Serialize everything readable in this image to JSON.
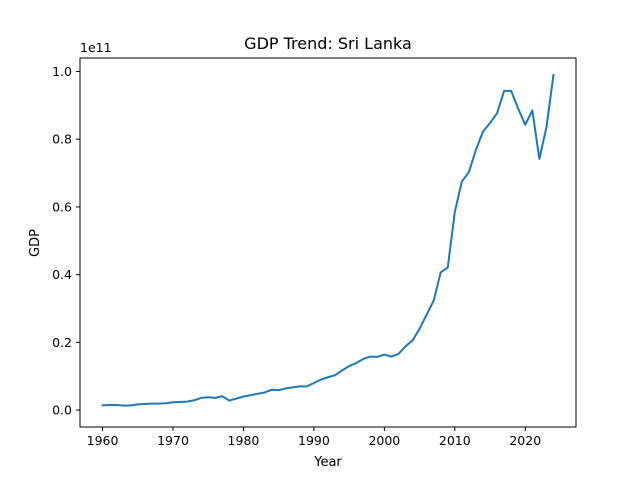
{
  "chart_data": {
    "type": "line",
    "title": "GDP Trend: Sri Lanka",
    "xlabel": "Year",
    "ylabel": "GDP",
    "y_offset_label": "1e11",
    "xlim": [
      1956.8,
      2027.2
    ],
    "ylim": [
      -0.05,
      1.04
    ],
    "y_scale_note": "values in units of 1e11",
    "x_ticks": [
      1960,
      1970,
      1980,
      1990,
      2000,
      2010,
      2020
    ],
    "x_tick_labels": [
      "1960",
      "1970",
      "1980",
      "1990",
      "2000",
      "2010",
      "2020"
    ],
    "y_ticks": [
      0.0,
      0.2,
      0.4,
      0.6,
      0.8,
      1.0
    ],
    "y_tick_labels": [
      "0.0",
      "0.2",
      "0.4",
      "0.6",
      "0.8",
      "1.0"
    ],
    "grid": false,
    "series": [
      {
        "color": "#1f77b4",
        "x": [
          1960,
          1961,
          1962,
          1963,
          1964,
          1965,
          1966,
          1967,
          1968,
          1969,
          1970,
          1971,
          1972,
          1973,
          1974,
          1975,
          1976,
          1977,
          1978,
          1979,
          1980,
          1981,
          1982,
          1983,
          1984,
          1985,
          1986,
          1987,
          1988,
          1989,
          1990,
          1991,
          1992,
          1993,
          1994,
          1995,
          1996,
          1997,
          1998,
          1999,
          2000,
          2001,
          2002,
          2003,
          2004,
          2005,
          2006,
          2007,
          2008,
          2009,
          2010,
          2011,
          2012,
          2013,
          2014,
          2015,
          2016,
          2017,
          2018,
          2019,
          2020,
          2021,
          2022,
          2023,
          2024
        ],
        "values": [
          0.014,
          0.015,
          0.015,
          0.013,
          0.014,
          0.017,
          0.018,
          0.019,
          0.019,
          0.02,
          0.023,
          0.024,
          0.025,
          0.029,
          0.036,
          0.038,
          0.036,
          0.041,
          0.028,
          0.034,
          0.04,
          0.044,
          0.048,
          0.052,
          0.06,
          0.059,
          0.064,
          0.067,
          0.07,
          0.07,
          0.08,
          0.09,
          0.097,
          0.103,
          0.117,
          0.13,
          0.139,
          0.151,
          0.158,
          0.157,
          0.164,
          0.158,
          0.166,
          0.188,
          0.206,
          0.24,
          0.282,
          0.323,
          0.407,
          0.421,
          0.586,
          0.675,
          0.703,
          0.769,
          0.823,
          0.848,
          0.877,
          0.943,
          0.943,
          0.89,
          0.843,
          0.885,
          0.742,
          0.835,
          0.99
        ]
      }
    ]
  }
}
